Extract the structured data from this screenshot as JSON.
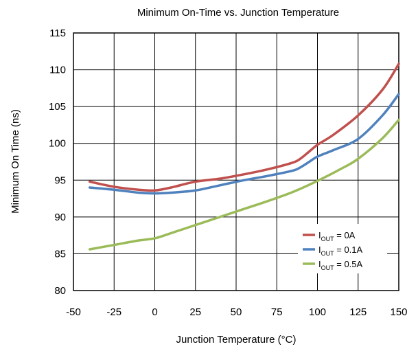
{
  "chart_data": {
    "type": "line",
    "title": "Minimum On-Time vs. Junction Temperature",
    "xlabel": "Junction Temperature (°C)",
    "ylabel": "Minimum  On Time (ns)",
    "xlim": [
      -50,
      150
    ],
    "ylim": [
      80,
      115
    ],
    "xticks": [
      "-50",
      "-25",
      "0",
      "25",
      "50",
      "75",
      "100",
      "125",
      "150"
    ],
    "yticks": [
      "80",
      "85",
      "90",
      "95",
      "100",
      "105",
      "110",
      "115"
    ],
    "grid": true,
    "legend_position": "bottom-right",
    "series": [
      {
        "name": "I_OUT = 0A",
        "label_main": "I",
        "label_sub": "OUT",
        "label_rest": " = 0A",
        "color": "#C0504D",
        "x": [
          -40,
          -25,
          -10,
          0,
          10,
          25,
          40,
          55,
          70,
          85,
          90,
          95,
          100,
          110,
          125,
          140,
          150
        ],
        "y": [
          94.8,
          94.1,
          93.7,
          93.6,
          94.0,
          94.8,
          95.2,
          95.8,
          96.5,
          97.4,
          98.0,
          98.9,
          99.8,
          101.2,
          103.8,
          107.3,
          110.8
        ]
      },
      {
        "name": "I_OUT = 0.1A",
        "label_main": "I",
        "label_sub": "OUT",
        "label_rest": " = 0.1A",
        "color": "#4F81BD",
        "x": [
          -40,
          -25,
          -10,
          0,
          10,
          25,
          40,
          55,
          70,
          85,
          90,
          95,
          100,
          110,
          125,
          140,
          150
        ],
        "y": [
          94.0,
          93.7,
          93.3,
          93.2,
          93.3,
          93.6,
          94.3,
          95.0,
          95.6,
          96.3,
          96.8,
          97.5,
          98.2,
          99.1,
          100.6,
          103.8,
          106.7
        ]
      },
      {
        "name": "I_OUT = 0.5A",
        "label_main": "I",
        "label_sub": "OUT",
        "label_rest": " = 0.5A",
        "color": "#9BBB59",
        "x": [
          -40,
          -25,
          -10,
          0,
          10,
          25,
          40,
          55,
          70,
          85,
          100,
          115,
          125,
          140,
          150
        ],
        "y": [
          85.6,
          86.2,
          86.8,
          87.1,
          87.8,
          88.9,
          90.0,
          91.1,
          92.2,
          93.4,
          94.9,
          96.6,
          97.9,
          100.7,
          103.2
        ]
      }
    ]
  }
}
